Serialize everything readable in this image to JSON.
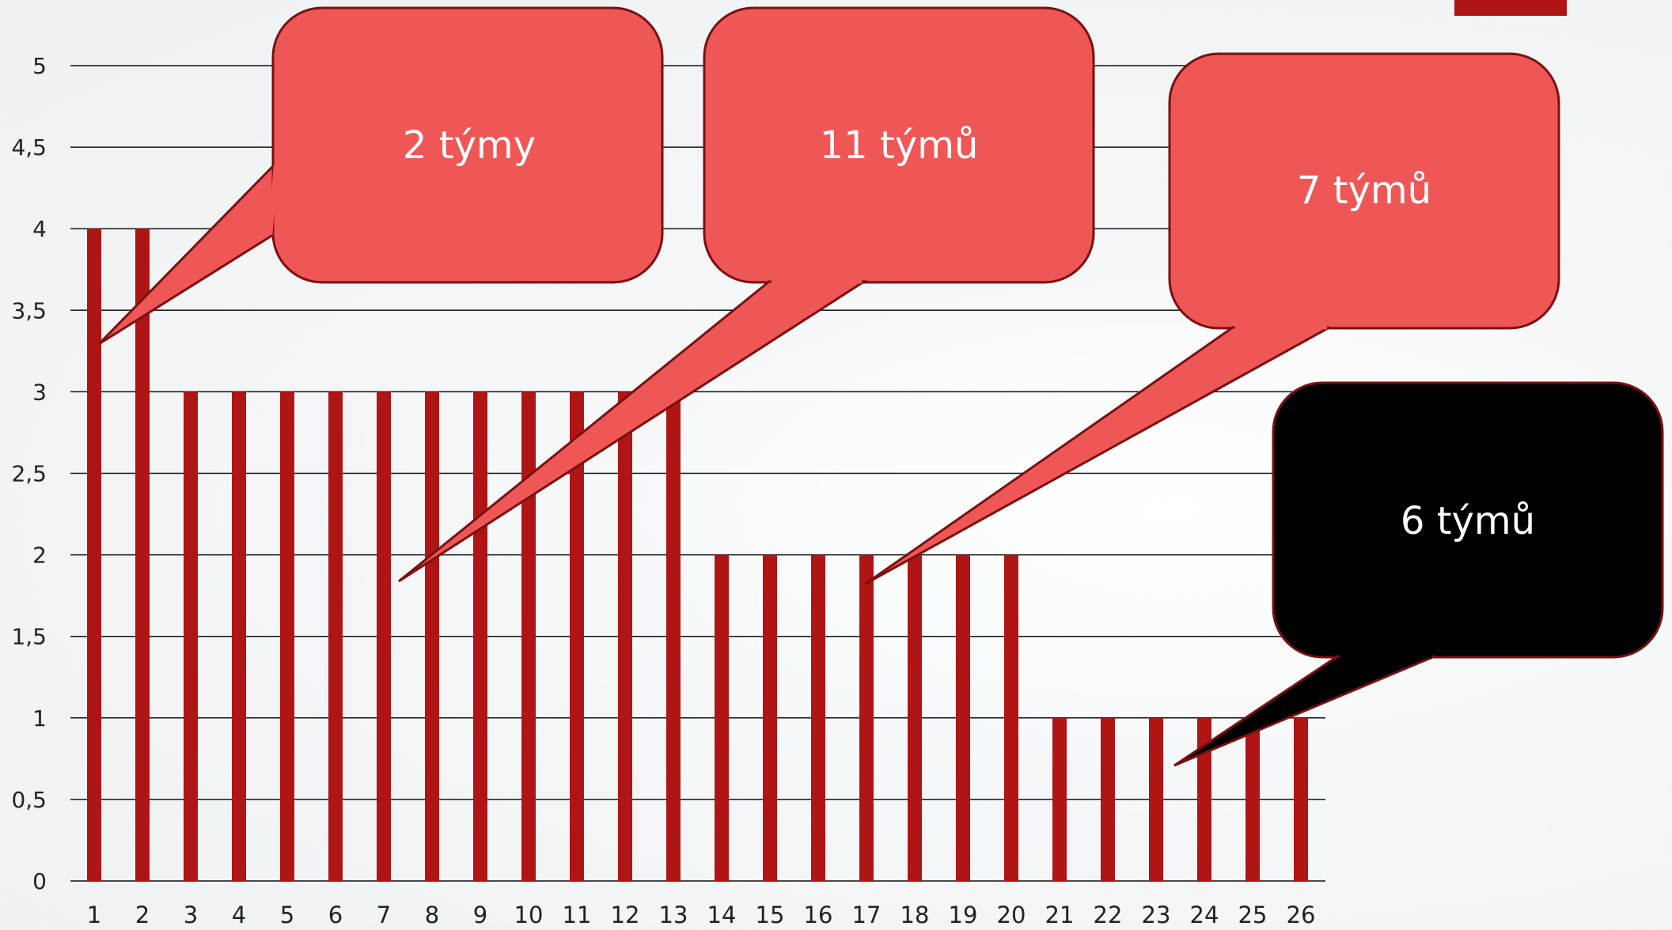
{
  "chart_data": {
    "type": "bar",
    "title": "",
    "xlabel": "",
    "ylabel": "",
    "ylim": [
      0,
      5
    ],
    "yticks": [
      "0",
      "0,5",
      "1",
      "1,5",
      "2",
      "2,5",
      "3",
      "3,5",
      "4",
      "4,5",
      "5"
    ],
    "grid": true,
    "legend": "none",
    "categories": [
      "1",
      "2",
      "3",
      "4",
      "5",
      "6",
      "7",
      "8",
      "9",
      "10",
      "11",
      "12",
      "13",
      "14",
      "15",
      "16",
      "17",
      "18",
      "19",
      "20",
      "21",
      "22",
      "23",
      "24",
      "25",
      "26"
    ],
    "values": [
      4,
      4,
      3,
      3,
      3,
      3,
      3,
      3,
      3,
      3,
      3,
      3,
      3,
      2,
      2,
      2,
      2,
      2,
      2,
      2,
      1,
      1,
      1,
      1,
      1,
      1
    ],
    "bar_color": "#b01516",
    "annotations": [
      {
        "text": "2 týmy",
        "fill": "#ef5757"
      },
      {
        "text": "11 týmů",
        "fill": "#ef5757"
      },
      {
        "text": "7 týmů",
        "fill": "#ef5757"
      },
      {
        "text": "6 týmů",
        "fill": "#000000"
      }
    ]
  }
}
